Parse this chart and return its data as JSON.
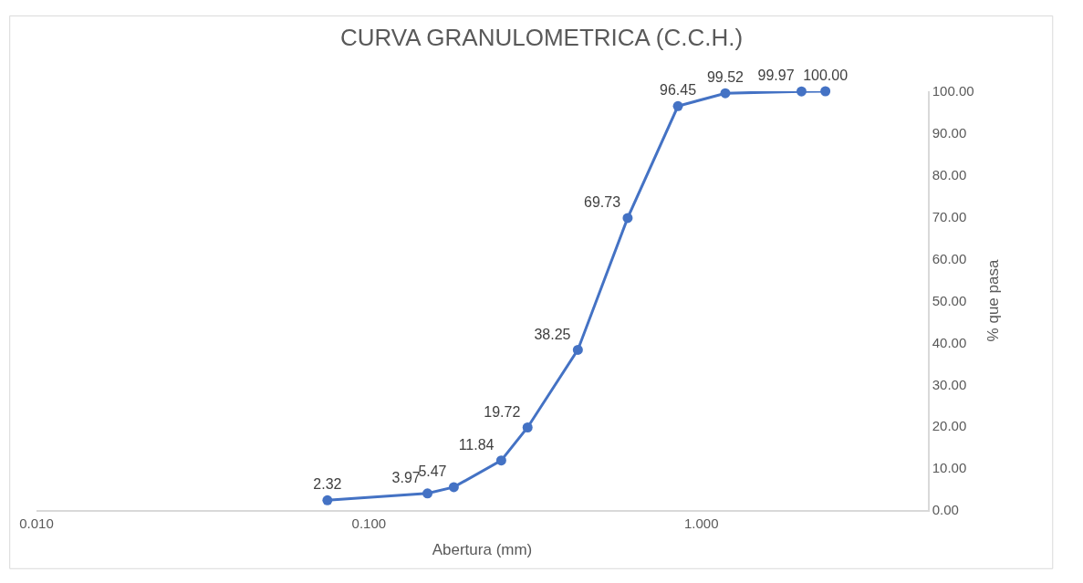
{
  "chart_data": {
    "type": "line",
    "title": "CURVA GRANULOMETRICA (C.C.H.)",
    "xlabel": "Abertura (mm)",
    "ylabel": "% que pasa",
    "x": [
      0.075,
      0.15,
      0.18,
      0.25,
      0.3,
      0.425,
      0.6,
      0.85,
      1.18,
      2.0,
      2.36
    ],
    "series": [
      {
        "color": "#4472c4",
        "values": [
          2.32,
          3.97,
          5.47,
          11.84,
          19.72,
          38.25,
          69.73,
          96.45,
          99.52,
          99.97,
          100.0
        ],
        "value_labels": [
          "2.32",
          "3.97",
          "5.47",
          "11.84",
          "19.72",
          "38.25",
          "69.73",
          "96.45",
          "99.52",
          "99.97",
          "100.00"
        ]
      }
    ],
    "log": "x",
    "xlim": [
      0.01,
      4.8
    ],
    "xticks": [
      {
        "value": 0.01,
        "label": "0.010"
      },
      {
        "value": 0.1,
        "label": "0.100"
      },
      {
        "value": 1,
        "label": "1.000"
      }
    ],
    "ylim": [
      0,
      100
    ],
    "yticks": [
      {
        "value": 0,
        "label": "0.00"
      },
      {
        "value": 10,
        "label": "10.00"
      },
      {
        "value": 20,
        "label": "20.00"
      },
      {
        "value": 30,
        "label": "30.00"
      },
      {
        "value": 40,
        "label": "40.00"
      },
      {
        "value": 50,
        "label": "50.00"
      },
      {
        "value": 60,
        "label": "60.00"
      },
      {
        "value": 70,
        "label": "70.00"
      },
      {
        "value": 80,
        "label": "80.00"
      },
      {
        "value": 90,
        "label": "90.00"
      },
      {
        "value": 100,
        "label": "100.00"
      }
    ],
    "marker": "circle",
    "line_style": "solid"
  }
}
